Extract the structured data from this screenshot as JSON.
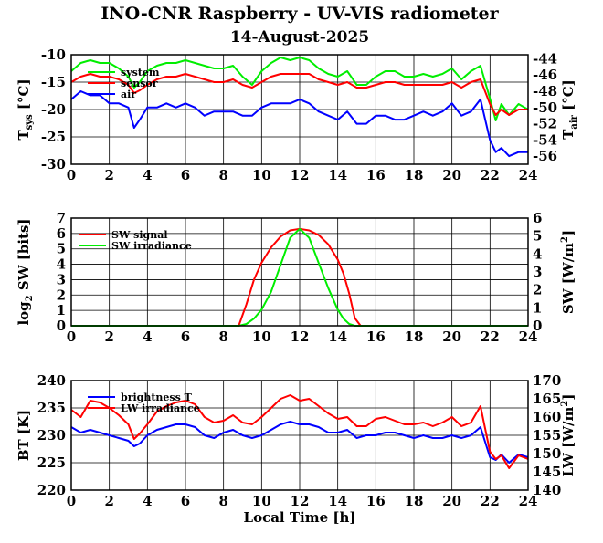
{
  "title": "INO-CNR Raspberry - UV-VIS radiometer",
  "subtitle": "14-August-2025",
  "colors": {
    "red": "#ff0000",
    "green": "#00ee00",
    "blue": "#0000ff",
    "grid": "#000000"
  },
  "chart_data": [
    {
      "type": "line",
      "xlabel": "",
      "ylabel": "T_sys [°C]",
      "y2label": "T_air [°C]",
      "xlim": [
        0,
        24
      ],
      "xticks": [
        0,
        2,
        4,
        6,
        8,
        10,
        12,
        14,
        16,
        18,
        20,
        22,
        24
      ],
      "ylim": [
        -30,
        -10
      ],
      "yticks": [
        -30,
        -25,
        -20,
        -15,
        -10
      ],
      "y2lim": [
        -57,
        -43.5
      ],
      "y2ticks": [
        -56,
        -54,
        -52,
        -50,
        -48,
        -46,
        -44
      ],
      "grid": true,
      "legend_position": "top-left",
      "series": [
        {
          "name": "system",
          "color": "#00ee00",
          "axis": "left",
          "x": [
            0,
            0.5,
            1,
            1.5,
            2,
            2.5,
            3,
            3.3,
            3.6,
            4,
            4.5,
            5,
            5.5,
            6,
            6.5,
            7,
            7.5,
            8,
            8.5,
            9,
            9.5,
            10,
            10.5,
            11,
            11.5,
            12,
            12.5,
            13,
            13.5,
            14,
            14.5,
            15,
            15.5,
            16,
            16.5,
            17,
            17.5,
            18,
            18.5,
            19,
            19.5,
            20,
            20.5,
            21,
            21.5,
            22,
            22.3,
            22.6,
            23,
            23.5,
            24
          ],
          "y": [
            -13,
            -11.5,
            -11,
            -11.5,
            -11.5,
            -12.5,
            -14,
            -16,
            -15,
            -13,
            -12,
            -11.5,
            -11.5,
            -11,
            -11.5,
            -12,
            -12.5,
            -12.5,
            -12,
            -14,
            -15.5,
            -13,
            -11.5,
            -10.5,
            -11,
            -10.5,
            -11,
            -12.5,
            -13.5,
            -14,
            -13,
            -15.5,
            -15.5,
            -14,
            -13,
            -13,
            -14,
            -14,
            -13.5,
            -14,
            -13.5,
            -12.5,
            -14.5,
            -13,
            -12,
            -18,
            -22,
            -19,
            -21,
            -19,
            -20
          ]
        },
        {
          "name": "sensor",
          "color": "#ff0000",
          "axis": "left",
          "x": [
            0,
            0.5,
            1,
            1.5,
            2,
            2.5,
            3,
            3.3,
            3.6,
            4,
            4.5,
            5,
            5.5,
            6,
            6.5,
            7,
            7.5,
            8,
            8.5,
            9,
            9.5,
            10,
            10.5,
            11,
            11.5,
            12,
            12.5,
            13,
            13.5,
            14,
            14.5,
            15,
            15.5,
            16,
            16.5,
            17,
            17.5,
            18,
            18.5,
            19,
            19.5,
            20,
            20.5,
            21,
            21.5,
            22,
            22.3,
            22.6,
            23,
            23.5,
            24
          ],
          "y": [
            -15,
            -14,
            -13.5,
            -14,
            -14,
            -14.5,
            -15.5,
            -17,
            -16.5,
            -15.5,
            -14.5,
            -14,
            -14,
            -13.5,
            -14,
            -14.5,
            -15,
            -15,
            -14.5,
            -15.5,
            -16,
            -15,
            -14,
            -13.5,
            -13.5,
            -13.5,
            -13.5,
            -14.5,
            -15,
            -15.5,
            -15,
            -16,
            -16,
            -15.5,
            -15,
            -15,
            -15.5,
            -15.5,
            -15.5,
            -15.5,
            -15.5,
            -15,
            -16,
            -15,
            -14.5,
            -19,
            -21,
            -20,
            -21,
            -20,
            -20
          ]
        },
        {
          "name": "air",
          "color": "#0000ff",
          "axis": "right",
          "x": [
            0,
            0.5,
            1,
            1.5,
            2,
            2.5,
            3,
            3.3,
            3.6,
            4,
            4.5,
            5,
            5.5,
            6,
            6.5,
            7,
            7.5,
            8,
            8.5,
            9,
            9.5,
            10,
            10.5,
            11,
            11.5,
            12,
            12.5,
            13,
            13.5,
            14,
            14.5,
            15,
            15.5,
            16,
            16.5,
            17,
            17.5,
            18,
            18.5,
            19,
            19.5,
            20,
            20.5,
            21,
            21.5,
            22,
            22.3,
            22.6,
            23,
            23.5,
            24
          ],
          "y": [
            -49,
            -48,
            -48.5,
            -48.5,
            -49.5,
            -49.5,
            -50,
            -52.5,
            -51.5,
            -50,
            -50,
            -49.5,
            -50,
            -49.5,
            -50,
            -51,
            -50.5,
            -50.5,
            -50.5,
            -51,
            -51,
            -50,
            -49.5,
            -49.5,
            -49.5,
            -49,
            -49.5,
            -50.5,
            -51,
            -51.5,
            -50.5,
            -52,
            -52,
            -51,
            -51,
            -51.5,
            -51.5,
            -51,
            -50.5,
            -51,
            -50.5,
            -49.5,
            -51,
            -50.5,
            -49,
            -54,
            -55.5,
            -55,
            -56,
            -55.5,
            -55.5
          ]
        }
      ]
    },
    {
      "type": "line",
      "xlabel": "",
      "ylabel": "log2 SW [bits]",
      "y2label": "SW [W/m2]",
      "xlim": [
        0,
        24
      ],
      "xticks": [
        0,
        2,
        4,
        6,
        8,
        10,
        12,
        14,
        16,
        18,
        20,
        22,
        24
      ],
      "ylim": [
        0,
        7
      ],
      "yticks": [
        0,
        1,
        2,
        3,
        4,
        5,
        6,
        7
      ],
      "y2lim": [
        0,
        6
      ],
      "y2ticks": [
        0,
        1,
        2,
        3,
        4,
        5,
        6
      ],
      "grid": true,
      "legend_position": "top-left",
      "series": [
        {
          "name": "SW signal",
          "color": "#ff0000",
          "axis": "left",
          "x": [
            0,
            8.8,
            9.2,
            9.6,
            10,
            10.5,
            11,
            11.5,
            12,
            12.5,
            13,
            13.5,
            14,
            14.3,
            14.6,
            14.9,
            15.2,
            24
          ],
          "y": [
            0,
            0,
            1.4,
            3.0,
            4.1,
            5.1,
            5.8,
            6.2,
            6.3,
            6.2,
            5.9,
            5.3,
            4.3,
            3.4,
            2.1,
            0.5,
            0,
            0
          ]
        },
        {
          "name": "SW irradiance",
          "color": "#00ee00",
          "axis": "right",
          "x": [
            0,
            8.8,
            9.2,
            9.6,
            10,
            10.5,
            11,
            11.5,
            12,
            12.5,
            13,
            13.5,
            14,
            14.3,
            14.6,
            14.9,
            15.2,
            24
          ],
          "y": [
            0,
            0,
            0.1,
            0.4,
            0.9,
            1.9,
            3.4,
            4.9,
            5.4,
            4.9,
            3.5,
            2.1,
            0.9,
            0.4,
            0.1,
            0,
            0,
            0
          ]
        }
      ]
    },
    {
      "type": "line",
      "xlabel": "Local Time [h]",
      "ylabel": "BT [K]",
      "y2label": "LW [W/m2]",
      "xlim": [
        0,
        24
      ],
      "xticks": [
        0,
        2,
        4,
        6,
        8,
        10,
        12,
        14,
        16,
        18,
        20,
        22,
        24
      ],
      "ylim": [
        220,
        240
      ],
      "yticks": [
        220,
        225,
        230,
        235,
        240
      ],
      "y2lim": [
        140,
        170
      ],
      "y2ticks": [
        140,
        145,
        150,
        155,
        160,
        165,
        170
      ],
      "grid": true,
      "legend_position": "top-left",
      "series": [
        {
          "name": "brightness T",
          "color": "#0000ff",
          "axis": "left",
          "x": [
            0,
            0.5,
            1,
            1.5,
            2,
            2.5,
            3,
            3.3,
            3.6,
            4,
            4.5,
            5,
            5.5,
            6,
            6.5,
            7,
            7.5,
            8,
            8.5,
            9,
            9.5,
            10,
            10.5,
            11,
            11.5,
            12,
            12.5,
            13,
            13.5,
            14,
            14.5,
            15,
            15.5,
            16,
            16.5,
            17,
            17.5,
            18,
            18.5,
            19,
            19.5,
            20,
            20.5,
            21,
            21.5,
            22,
            22.3,
            22.6,
            23,
            23.5,
            24
          ],
          "y": [
            231.5,
            230.5,
            231,
            230.5,
            230,
            229.5,
            229,
            228,
            228.5,
            230,
            231,
            231.5,
            232,
            232,
            231.5,
            230,
            229.5,
            230.5,
            231,
            230,
            229.5,
            230,
            231,
            232,
            232.5,
            232,
            232,
            231.5,
            230.5,
            230.5,
            231,
            229.5,
            230,
            230,
            230.5,
            230.5,
            230,
            229.5,
            230,
            229.5,
            229.5,
            230,
            229.5,
            230,
            231.5,
            226,
            225.5,
            226.5,
            225,
            226.5,
            226
          ]
        },
        {
          "name": "LW irradiance",
          "color": "#ff0000",
          "axis": "right",
          "x": [
            0,
            0.5,
            1,
            1.5,
            2,
            2.5,
            3,
            3.3,
            3.6,
            4,
            4.5,
            5,
            5.5,
            6,
            6.5,
            7,
            7.5,
            8,
            8.5,
            9,
            9.5,
            10,
            10.5,
            11,
            11.5,
            12,
            12.5,
            13,
            13.5,
            14,
            14.5,
            15,
            15.5,
            16,
            16.5,
            17,
            17.5,
            18,
            18.5,
            19,
            19.5,
            20,
            20.5,
            21,
            21.5,
            22,
            22.3,
            22.6,
            23,
            23.5,
            24
          ],
          "y": [
            162,
            160,
            164.5,
            164,
            162.5,
            160.5,
            158,
            154,
            155.5,
            158,
            161.5,
            163,
            164,
            164.5,
            163.5,
            160,
            158.5,
            159,
            160.5,
            158.5,
            158,
            160,
            162.5,
            165,
            166,
            164.5,
            165,
            163,
            161,
            159.5,
            160,
            157.5,
            157.5,
            159.5,
            160,
            159,
            158,
            158,
            158.5,
            157.5,
            158.5,
            160,
            157.5,
            158.5,
            163,
            150.5,
            148.5,
            149.5,
            146,
            149.5,
            148.5
          ]
        }
      ]
    }
  ]
}
